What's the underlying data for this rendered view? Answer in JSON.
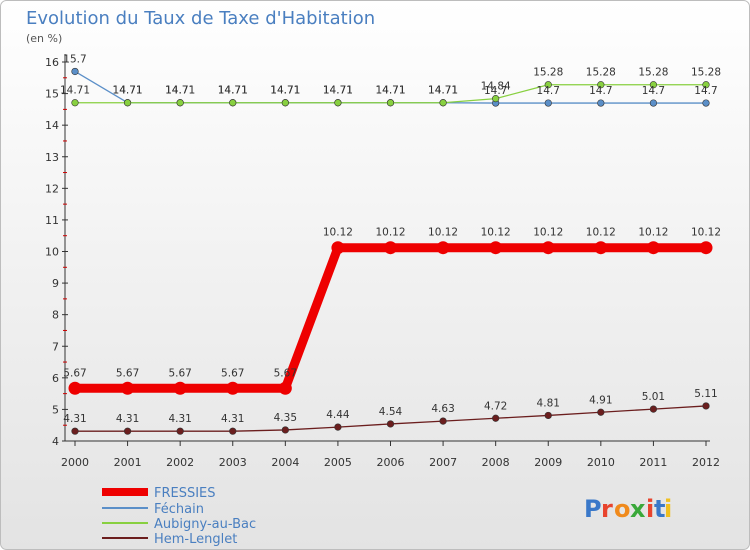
{
  "chart_data": {
    "type": "line",
    "title": "Evolution du Taux de Taxe d'Habitation",
    "ylabel": "(en %)",
    "xlabel": "",
    "categories": [
      "2000",
      "2001",
      "2002",
      "2003",
      "2004",
      "2005",
      "2006",
      "2007",
      "2008",
      "2009",
      "2010",
      "2011",
      "2012"
    ],
    "ylim": [
      4,
      16
    ],
    "yticks": [
      "4",
      "5",
      "6",
      "7",
      "8",
      "9",
      "10",
      "11",
      "12",
      "13",
      "14",
      "15",
      "16"
    ],
    "grid": false,
    "legend_position": "bottom-left",
    "series": [
      {
        "name": "FRESSIES",
        "color": "#ee0000",
        "values": [
          5.67,
          5.67,
          5.67,
          5.67,
          5.67,
          10.12,
          10.12,
          10.12,
          10.12,
          10.12,
          10.12,
          10.12,
          10.12
        ],
        "labels": [
          "5.67",
          "5.67",
          "5.67",
          "5.67",
          "5.67",
          "10.12",
          "10.12",
          "10.12",
          "10.12",
          "10.12",
          "10.12",
          "10.12",
          "10.12"
        ]
      },
      {
        "name": "Féchain",
        "color": "#5b8fc8",
        "values": [
          15.7,
          14.71,
          14.71,
          14.71,
          14.71,
          14.71,
          14.71,
          14.71,
          14.7,
          14.7,
          14.7,
          14.7,
          14.7
        ],
        "labels": [
          "15.7",
          "14.71",
          "14.71",
          "14.71",
          "14.71",
          "14.71",
          "14.71",
          "14.71",
          "14.7",
          "14.7",
          "14.7",
          "14.7",
          "14.7"
        ]
      },
      {
        "name": "Aubigny-au-Bac",
        "color": "#88d040",
        "values": [
          14.71,
          14.71,
          14.71,
          14.71,
          14.71,
          14.71,
          14.71,
          14.71,
          14.84,
          15.28,
          15.28,
          15.28,
          15.28
        ],
        "labels": [
          "14.71",
          "14.71",
          "14.71",
          "14.71",
          "14.71",
          "14.71",
          "14.71",
          "14.71",
          "14.84",
          "15.28",
          "15.28",
          "15.28",
          "15.28"
        ]
      },
      {
        "name": "Hem-Lenglet",
        "color": "#6b1e1e",
        "values": [
          4.31,
          4.31,
          4.31,
          4.31,
          4.35,
          4.44,
          4.54,
          4.63,
          4.72,
          4.81,
          4.91,
          5.01,
          5.11
        ],
        "labels": [
          "4.31",
          "4.31",
          "4.31",
          "4.31",
          "4.35",
          "4.44",
          "4.54",
          "4.63",
          "4.72",
          "4.81",
          "4.91",
          "5.01",
          "5.11"
        ]
      }
    ]
  },
  "brand": {
    "logo_text": "Proxiti",
    "letter_colors": [
      "#3a78c9",
      "#e8442e",
      "#f08a1c",
      "#3aa83a",
      "#e8442e",
      "#3a78c9",
      "#f0c020"
    ]
  }
}
